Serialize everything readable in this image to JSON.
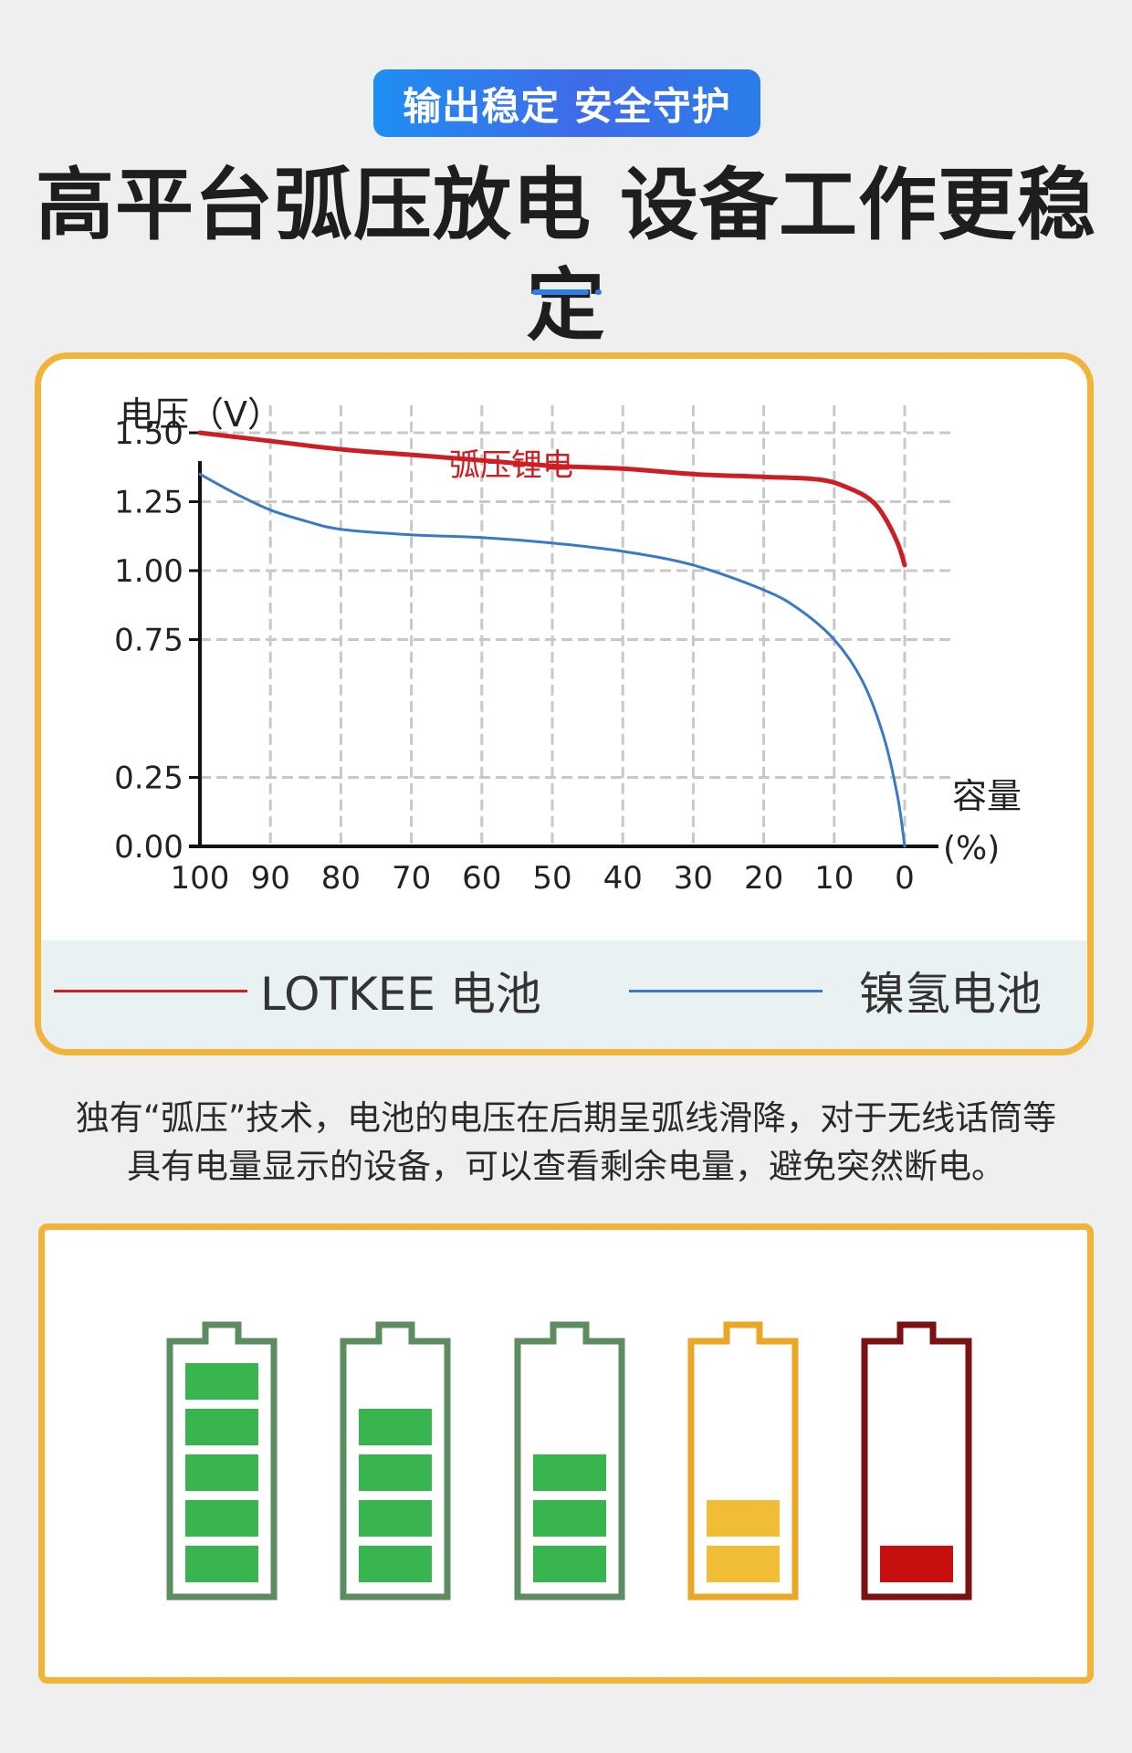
{
  "badge": "输出稳定 安全守护",
  "title": "高平台弧压放电 设备工作更稳定",
  "chart_data": {
    "type": "line",
    "ylabel": "电压（V）",
    "xlabel": "容量(%)",
    "xlabel_parts": [
      "容量",
      "(%)"
    ],
    "x_ticks": [
      100,
      90,
      80,
      70,
      60,
      50,
      40,
      30,
      20,
      10,
      0
    ],
    "y_ticks": [
      "0.00",
      "0.25",
      "0.75",
      "1.00",
      "1.25",
      "1.50"
    ],
    "x_reversed": true,
    "grid": true,
    "series": [
      {
        "name": "弧压锂电",
        "color": "#cc1f24",
        "x": [
          100,
          90,
          80,
          70,
          60,
          50,
          40,
          30,
          20,
          12,
          8,
          5,
          3,
          1,
          0
        ],
        "y": [
          1.5,
          1.47,
          1.44,
          1.42,
          1.4,
          1.38,
          1.37,
          1.35,
          1.34,
          1.33,
          1.3,
          1.26,
          1.2,
          1.1,
          1.02
        ]
      },
      {
        "name": "镍氢电池",
        "color": "#3a7ac4",
        "x": [
          100,
          95,
          90,
          85,
          80,
          70,
          60,
          50,
          40,
          30,
          20,
          15,
          10,
          6,
          3,
          1,
          0
        ],
        "y": [
          1.35,
          1.28,
          1.22,
          1.18,
          1.15,
          1.13,
          1.12,
          1.1,
          1.07,
          1.02,
          0.93,
          0.86,
          0.75,
          0.6,
          0.4,
          0.18,
          0.0
        ]
      }
    ],
    "legend": [
      {
        "label": "LOTKEE 电池",
        "color": "#cc1f24"
      },
      {
        "label": "镍氢电池",
        "color": "#3a7ac4"
      }
    ]
  },
  "description": {
    "line1": "独有“弧压”技术，电池的电压在后期呈弧线滑降，对于无线话筒等",
    "line2": "具有电量显示的设备，可以查看剩余电量，避免突然断电。"
  },
  "batteries": [
    {
      "level": 5,
      "capacity": 5,
      "frame_color": "#5c8c60",
      "fill_color": "#38b54f"
    },
    {
      "level": 4,
      "capacity": 5,
      "frame_color": "#5c8c60",
      "fill_color": "#38b54f"
    },
    {
      "level": 3,
      "capacity": 5,
      "frame_color": "#5c8c60",
      "fill_color": "#38b54f"
    },
    {
      "level": 2,
      "capacity": 5,
      "frame_color": "#e9a725",
      "fill_color": "#f2bd36"
    },
    {
      "level": 1,
      "capacity": 5,
      "frame_color": "#7a1212",
      "fill_color": "#c70f0f"
    }
  ]
}
